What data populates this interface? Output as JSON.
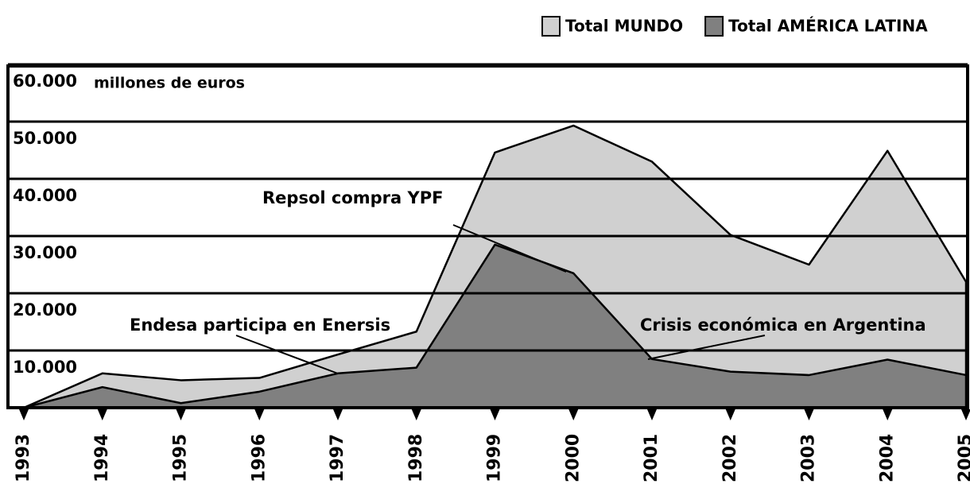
{
  "chart_data": {
    "type": "area",
    "y_label": "millones de euros",
    "x": [
      1993,
      1994,
      1995,
      1996,
      1997,
      1998,
      1999,
      2000,
      2001,
      2002,
      2003,
      2004,
      2005
    ],
    "series": [
      {
        "name": "Total MUNDO",
        "color": "#d0d0d0",
        "values": [
          0,
          6000,
          4800,
          5200,
          9300,
          13300,
          44600,
          49300,
          43000,
          30200,
          25000,
          44900,
          22000
        ]
      },
      {
        "name": "Total AMÉRICA LATINA",
        "color": "#808080",
        "values": [
          0,
          3600,
          800,
          2800,
          6000,
          7000,
          28500,
          23500,
          8500,
          6300,
          5700,
          8400,
          5700
        ]
      }
    ],
    "xlim": [
      1993,
      2005
    ],
    "xticks": [
      1993,
      1994,
      1995,
      1996,
      1997,
      1998,
      1999,
      2000,
      2001,
      2002,
      2003,
      2004,
      2005
    ],
    "ylim": [
      0,
      60000
    ],
    "yticks": [
      {
        "value": 10000,
        "label": "10.000"
      },
      {
        "value": 20000,
        "label": "20.000"
      },
      {
        "value": 30000,
        "label": "30.000"
      },
      {
        "value": 40000,
        "label": "40.000"
      },
      {
        "value": 50000,
        "label": "50.000"
      },
      {
        "value": 60000,
        "label": "60.000"
      }
    ],
    "grid": true,
    "legend": "top-right",
    "annotations": [
      "Repsol compra YPF",
      "Endesa participa en Enersis",
      "Crisis económica en Argentina"
    ]
  }
}
